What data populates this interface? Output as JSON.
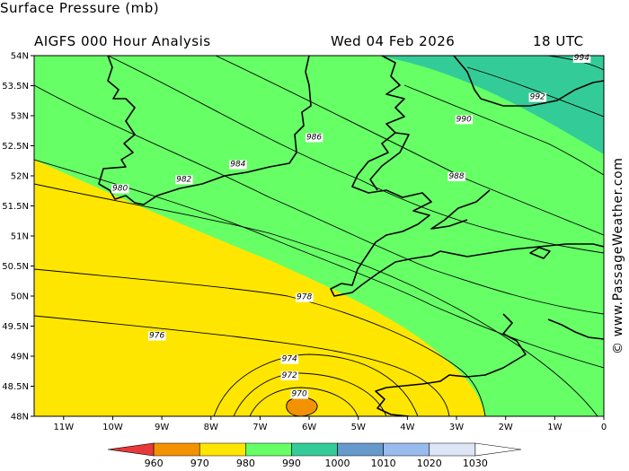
{
  "header": {
    "title": "Surface Pressure (mb)",
    "subtitle": "AIGFS 000 Hour Analysis",
    "date": "Wed 04 Feb 2026",
    "utc": "18 UTC"
  },
  "credit": "© www.PassageWeather.com",
  "axes": {
    "lat_ticks": [
      "54N",
      "53.5N",
      "53N",
      "52.5N",
      "52N",
      "51.5N",
      "51N",
      "50.5N",
      "50N",
      "49.5N",
      "49N",
      "48.5N",
      "48N"
    ],
    "lon_ticks": [
      "11W",
      "10W",
      "9W",
      "8W",
      "7W",
      "6W",
      "5W",
      "4W",
      "3W",
      "2W",
      "1W",
      "0"
    ]
  },
  "map_data": {
    "lon_range": [
      -11.6,
      0
    ],
    "lat_range": [
      48,
      54
    ],
    "isobar_labels": [
      {
        "text": "994",
        "lon": -0.45,
        "lat": 53.97
      },
      {
        "text": "992",
        "lon": -1.35,
        "lat": 53.32
      },
      {
        "text": "990",
        "lon": -2.85,
        "lat": 52.95
      },
      {
        "text": "988",
        "lon": -3.0,
        "lat": 52.0
      },
      {
        "text": "986",
        "lon": -5.9,
        "lat": 52.65
      },
      {
        "text": "984",
        "lon": -7.45,
        "lat": 52.2
      },
      {
        "text": "982",
        "lon": -8.55,
        "lat": 51.95
      },
      {
        "text": "980",
        "lon": -9.85,
        "lat": 51.8
      },
      {
        "text": "978",
        "lon": -6.1,
        "lat": 49.99
      },
      {
        "text": "976",
        "lon": -9.1,
        "lat": 49.35
      },
      {
        "text": "974",
        "lon": -6.4,
        "lat": 48.96
      },
      {
        "text": "972",
        "lon": -6.4,
        "lat": 48.69
      },
      {
        "text": "970",
        "lon": -6.2,
        "lat": 48.38
      }
    ]
  },
  "colorbar": {
    "labels": [
      "960",
      "970",
      "980",
      "990",
      "1000",
      "1010",
      "1020",
      "1030"
    ],
    "colors": [
      "#e8393a",
      "#f39200",
      "#ffe600",
      "#66ff66",
      "#33cc99",
      "#6699cc",
      "#99bbee",
      "#dde6f6",
      "#ffffff"
    ]
  },
  "colors": {
    "band_970_980": "#ffe600",
    "band_980_990": "#66ff66",
    "band_990_1000": "#33cc99",
    "band_960_970": "#f39200"
  }
}
